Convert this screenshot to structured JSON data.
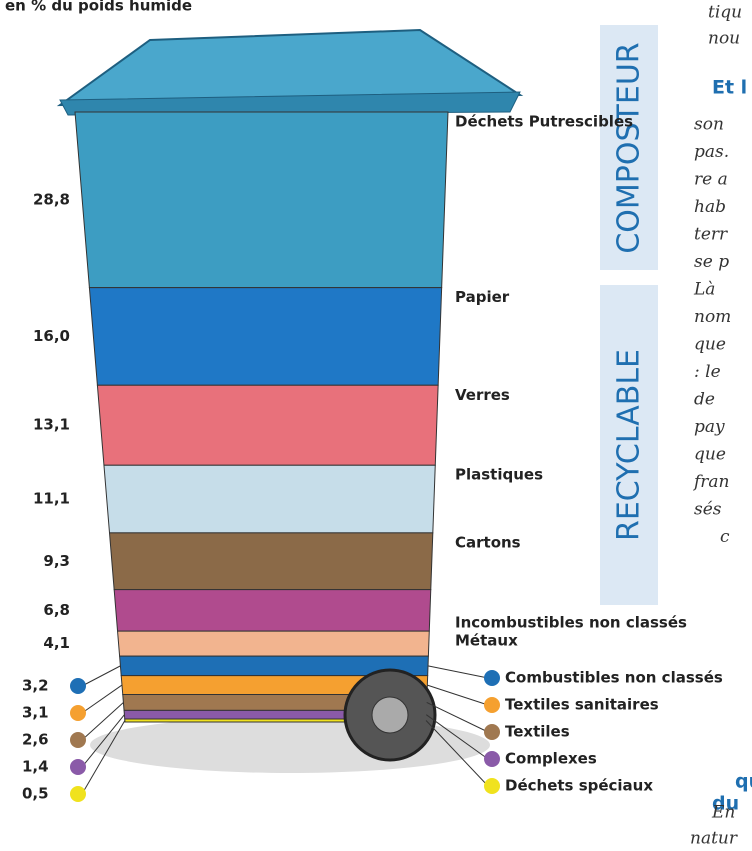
{
  "chart_data": {
    "type": "bin",
    "title": "en % du poids humide",
    "groups": [
      "COMPOSTEUR",
      "RECYCLABLE"
    ],
    "categories": [
      "Déchets Putrescibles",
      "Papier",
      "Verres",
      "Plastiques",
      "Cartons",
      "Incombustibles non classés",
      "Métaux",
      "Combustibles non classés",
      "Textiles sanitaires",
      "Textiles",
      "Complexes",
      "Déchets spéciaux"
    ],
    "values": [
      28.8,
      16.0,
      13.1,
      11.1,
      9.3,
      6.8,
      4.1,
      3.2,
      3.1,
      2.6,
      1.4,
      0.5
    ],
    "value_labels": [
      "28,8",
      "16,0",
      "13,1",
      "11,1",
      "9,3",
      "6,8",
      "4,1",
      "3,2",
      "3,1",
      "2,6",
      "1,4",
      "0,5"
    ],
    "colors": [
      "#3d9dc2",
      "#1f78c6",
      "#e8717b",
      "#c6dde9",
      "#8b6a48",
      "#b04b8e",
      "#f2b48f",
      "#1e6fb5",
      "#f5a030",
      "#a07850",
      "#8a5aa8",
      "#f0e21e"
    ]
  },
  "side_text": {
    "heading": "Et l",
    "lines": [
      "tiqu",
      "nou",
      "son",
      "pas.",
      "re a",
      "hab",
      "terr",
      "se p",
      "Là",
      "nom",
      "que",
      ": le",
      "de",
      "pay",
      "que",
      "fran",
      "sés",
      "c"
    ],
    "bottom_heading": [
      "qu",
      "du"
    ],
    "bottom_lines": [
      "En",
      "natur"
    ]
  }
}
